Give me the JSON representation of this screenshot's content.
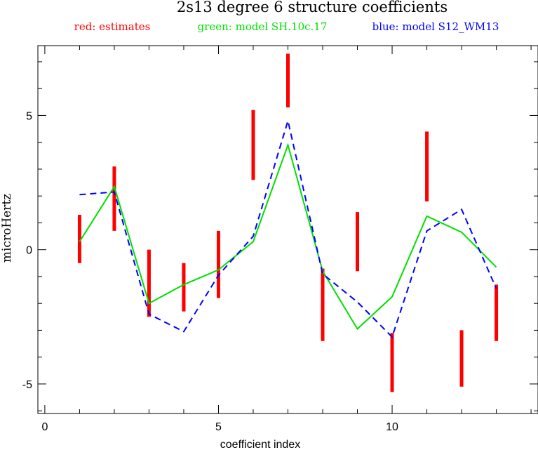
{
  "chart_data": {
    "type": "line",
    "title": "2s13 degree 6 structure coefficients",
    "xlabel": "coefficient index",
    "ylabel": "microHertz",
    "xlim": [
      -0.2,
      14.2
    ],
    "ylim": [
      -6.1,
      7.6
    ],
    "x_ticks": [
      0,
      5,
      10
    ],
    "y_ticks": [
      -5,
      0,
      5
    ],
    "grid": false,
    "legend": [
      {
        "text": "red: estimates",
        "color": "#ff0000"
      },
      {
        "text": "green: model SH.10c.17",
        "color": "#00e000"
      },
      {
        "text": "blue: model S12_WM13",
        "color": "#0000ff"
      }
    ],
    "estimates": {
      "color": "#ff0000",
      "x": [
        1,
        2,
        3,
        4,
        5,
        6,
        7,
        8,
        9,
        10,
        11,
        12,
        13
      ],
      "low": [
        -0.5,
        0.7,
        -2.5,
        -2.3,
        -1.8,
        2.6,
        5.3,
        -3.4,
        -0.8,
        -5.3,
        1.8,
        -5.1,
        -3.4
      ],
      "high": [
        1.3,
        3.1,
        0.0,
        -0.5,
        0.7,
        5.2,
        7.3,
        -0.7,
        1.4,
        -3.1,
        4.4,
        -3.0,
        -1.3
      ]
    },
    "series": [
      {
        "name": "model SH.10c.17",
        "color": "#00e000",
        "x": [
          1,
          2,
          3,
          4,
          5,
          6,
          7,
          8,
          9,
          10,
          11,
          12,
          13
        ],
        "y": [
          0.3,
          2.35,
          -2.0,
          -1.3,
          -0.75,
          0.3,
          3.9,
          -0.8,
          -2.95,
          -1.75,
          1.25,
          0.65,
          -0.65
        ]
      },
      {
        "name": "model S12_WM13",
        "color": "#0000ff",
        "x": [
          1,
          2,
          3,
          4,
          5,
          6,
          7,
          8,
          9,
          10,
          11,
          12,
          13
        ],
        "y": [
          2.05,
          2.15,
          -2.4,
          -3.05,
          -0.95,
          0.5,
          4.8,
          -0.9,
          -1.95,
          -3.25,
          0.7,
          1.5,
          -1.45
        ]
      }
    ]
  }
}
